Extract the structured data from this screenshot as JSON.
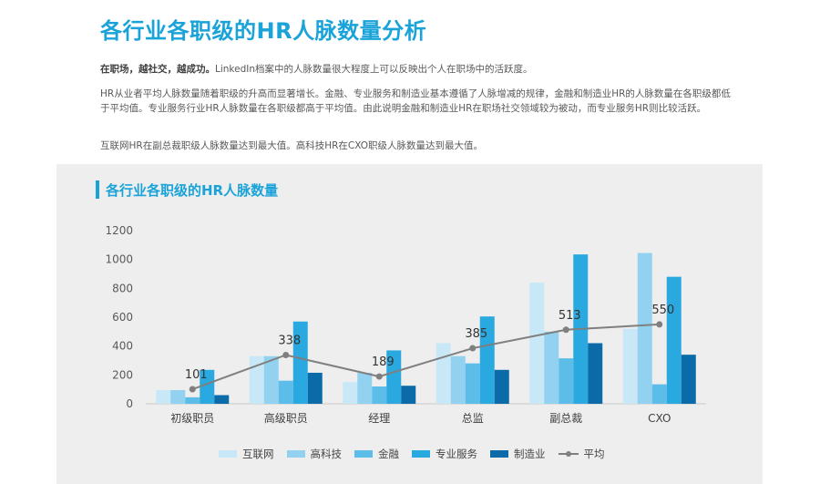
{
  "page": {
    "title": "各行业各职级的HR人脉数量分析",
    "paragraph1_lead": "在职场，越社交，越成功。",
    "paragraph1_rest": "LinkedIn档案中的人脉数量很大程度上可以反映出个人在职场中的活跃度。",
    "paragraph2": "HR从业者平均人脉数量随着职级的升高而显著增长。金融、专业服务和制造业基本遵循了人脉增减的规律，金融和制造业HR的人脉数量在各职级都低于平均值。专业服务行业HR人脉数量在各职级都高于平均值。由此说明金融和制造业HR在职场社交领域较为被动，而专业服务HR则比较活跃。",
    "paragraph3": "互联网HR在副总裁职级人脉数量达到最大值。高科技HR在CXO职级人脉数量达到最大值。"
  },
  "chart_data": {
    "type": "bar",
    "title": "各行业各职级的HR人脉数量",
    "categories": [
      "初级职员",
      "高级职员",
      "经理",
      "总监",
      "副总裁",
      "CXO"
    ],
    "yticks": [
      "0",
      "200",
      "400",
      "600",
      "800",
      "1000",
      "1200"
    ],
    "ylim": [
      0,
      1200
    ],
    "series": [
      {
        "name": "互联网",
        "color": "#c9e8f7",
        "values": [
          95,
          330,
          150,
          420,
          840,
          520
        ]
      },
      {
        "name": "高科技",
        "color": "#92d2f0",
        "values": [
          95,
          330,
          215,
          330,
          500,
          1045
        ]
      },
      {
        "name": "金融",
        "color": "#5bbde8",
        "values": [
          45,
          160,
          120,
          280,
          315,
          135
        ]
      },
      {
        "name": "专业服务",
        "color": "#2aa9e0",
        "values": [
          235,
          570,
          370,
          605,
          1035,
          880
        ]
      },
      {
        "name": "制造业",
        "color": "#0b6aa8",
        "values": [
          60,
          215,
          125,
          235,
          420,
          340
        ]
      }
    ],
    "line": {
      "name": "平均",
      "color": "#7f7f7f",
      "values": [
        101,
        338,
        189,
        385,
        513,
        550
      ],
      "labels": [
        "101",
        "338",
        "189",
        "385",
        "513",
        "550"
      ]
    },
    "grid": false,
    "legend_position": "bottom"
  }
}
